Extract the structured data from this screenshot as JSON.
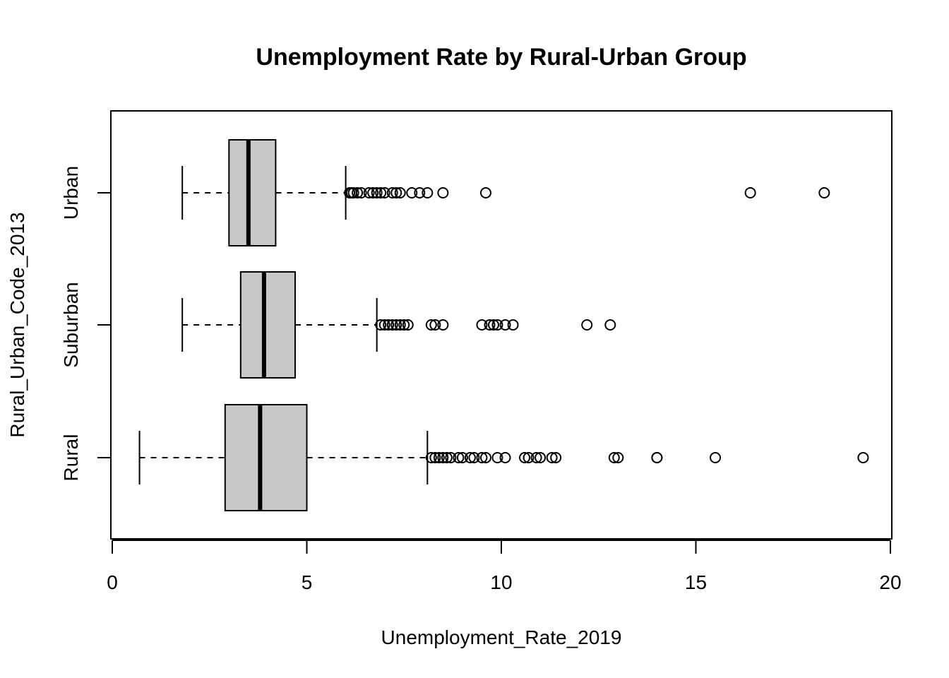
{
  "chart_data": {
    "type": "boxplot",
    "orientation": "horizontal",
    "title": "Unemployment Rate by Rural-Urban Group",
    "xlabel": "Unemployment_Rate_2019",
    "ylabel": "Rural_Urban_Code_2013",
    "xlim": [
      0,
      20
    ],
    "xticks": [
      "0",
      "5",
      "10",
      "15",
      "20"
    ],
    "grid": false,
    "box_fill": "#c8c8c8",
    "groups": [
      {
        "name": "Rural",
        "whisker_low": 0.7,
        "q1": 2.9,
        "median": 3.8,
        "q3": 5.0,
        "whisker_high": 8.1,
        "outliers": [
          8.2,
          8.3,
          8.4,
          8.5,
          8.6,
          8.7,
          8.9,
          9.0,
          9.2,
          9.3,
          9.5,
          9.6,
          9.9,
          10.1,
          10.6,
          10.7,
          10.9,
          11.0,
          11.3,
          11.4,
          12.9,
          13.0,
          14.0,
          14.0,
          15.5,
          19.3
        ]
      },
      {
        "name": "Suburban",
        "whisker_low": 1.8,
        "q1": 3.3,
        "median": 3.9,
        "q3": 4.7,
        "whisker_high": 6.8,
        "outliers": [
          6.9,
          7.0,
          7.1,
          7.2,
          7.3,
          7.4,
          7.5,
          7.6,
          8.2,
          8.3,
          8.5,
          9.5,
          9.7,
          9.8,
          9.9,
          10.1,
          10.3,
          12.2,
          12.8
        ]
      },
      {
        "name": "Urban",
        "whisker_low": 1.8,
        "q1": 3.0,
        "median": 3.5,
        "q3": 4.2,
        "whisker_high": 6.0,
        "outliers": [
          6.1,
          6.15,
          6.2,
          6.3,
          6.4,
          6.6,
          6.7,
          6.8,
          6.9,
          7.0,
          7.2,
          7.3,
          7.4,
          7.7,
          7.9,
          8.1,
          8.5,
          9.6,
          16.4,
          18.3
        ]
      }
    ]
  }
}
